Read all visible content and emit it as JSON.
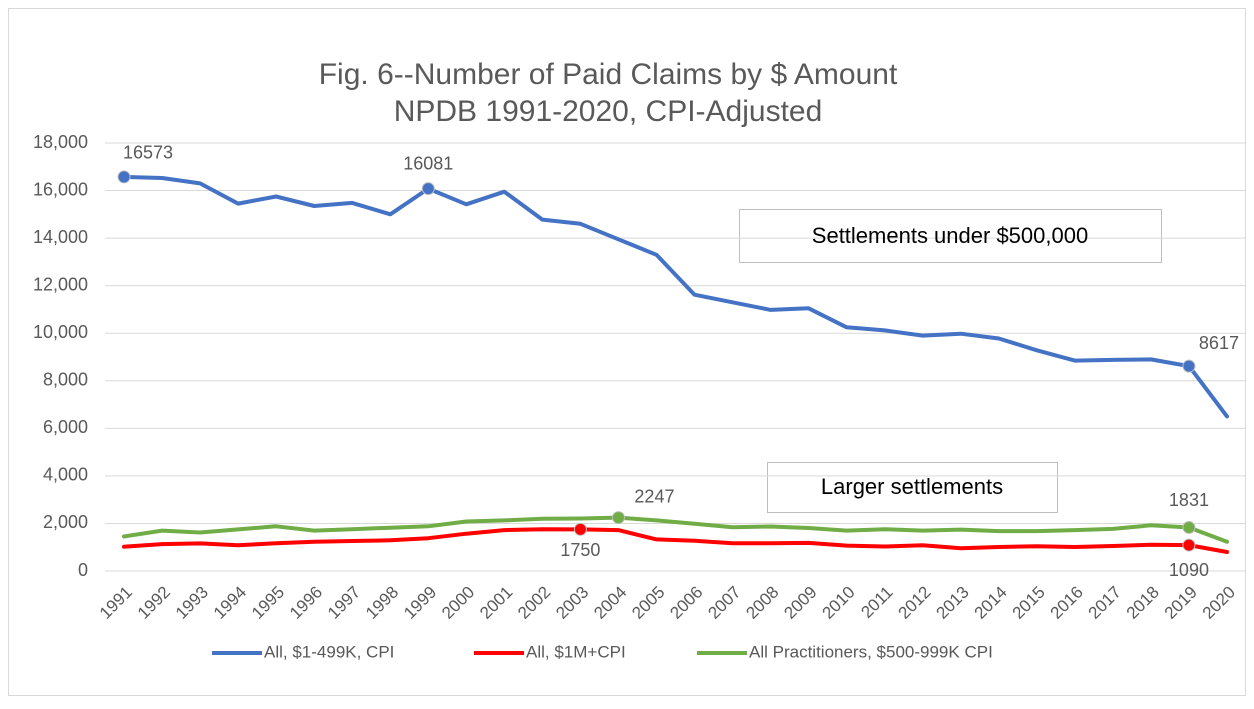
{
  "chart_data": {
    "type": "line",
    "title": "Fig. 6--Number of Paid Claims by $ Amount",
    "subtitle": "NPDB 1991-2020, CPI-Adjusted",
    "categories": [
      "1991",
      "1992",
      "1993",
      "1994",
      "1995",
      "1996",
      "1997",
      "1998",
      "1999",
      "2000",
      "2001",
      "2002",
      "2003",
      "2004",
      "2005",
      "2006",
      "2007",
      "2008",
      "2009",
      "2010",
      "2011",
      "2012",
      "2013",
      "2014",
      "2015",
      "2016",
      "2017",
      "2018",
      "2019",
      "2020"
    ],
    "series": [
      {
        "name": "All, $1-499K, CPI",
        "color": "#4472c4",
        "values": [
          16573,
          16530,
          16300,
          15450,
          15750,
          15350,
          15480,
          15000,
          16081,
          15420,
          15950,
          14780,
          14600,
          13950,
          13300,
          11620,
          11300,
          10980,
          11050,
          10250,
          10120,
          9900,
          9980,
          9780,
          9280,
          8850,
          8880,
          8900,
          8617,
          6500
        ],
        "value_labels": [
          "16573",
          null,
          null,
          null,
          null,
          null,
          null,
          null,
          "16081",
          null,
          null,
          null,
          null,
          null,
          null,
          null,
          null,
          null,
          null,
          null,
          null,
          null,
          null,
          null,
          null,
          null,
          null,
          null,
          "8617",
          null
        ]
      },
      {
        "name": "All, $1M+CPI",
        "color": "#ff0000",
        "values": [
          1020,
          1130,
          1160,
          1080,
          1170,
          1230,
          1260,
          1290,
          1380,
          1570,
          1720,
          1760,
          1750,
          1720,
          1330,
          1270,
          1170,
          1170,
          1180,
          1070,
          1030,
          1080,
          960,
          1010,
          1040,
          1010,
          1050,
          1100,
          1090,
          800
        ],
        "value_labels": [
          null,
          null,
          null,
          null,
          null,
          null,
          null,
          null,
          null,
          null,
          null,
          null,
          "1750",
          null,
          null,
          null,
          null,
          null,
          null,
          null,
          null,
          null,
          null,
          null,
          null,
          null,
          null,
          null,
          "1090",
          null
        ]
      },
      {
        "name": "All Practitioners, $500-999K CPI",
        "color": "#70ad47",
        "values": [
          1450,
          1700,
          1620,
          1750,
          1880,
          1700,
          1760,
          1820,
          1880,
          2080,
          2130,
          2200,
          2210,
          2247,
          2130,
          1990,
          1840,
          1870,
          1810,
          1700,
          1760,
          1700,
          1740,
          1680,
          1680,
          1720,
          1770,
          1920,
          1831,
          1230
        ],
        "value_labels": [
          null,
          null,
          null,
          null,
          null,
          null,
          null,
          null,
          null,
          null,
          null,
          null,
          null,
          "2247",
          null,
          null,
          null,
          null,
          null,
          null,
          null,
          null,
          null,
          null,
          null,
          null,
          null,
          null,
          "1831",
          null
        ]
      }
    ],
    "annotations": [
      "Settlements under $500,000",
      "Larger settlements"
    ],
    "ylim": [
      0,
      18000
    ],
    "yticks": [
      0,
      {
        "value": 2000,
        "label": "2,000"
      },
      {
        "value": 4000,
        "label": "4,000"
      },
      {
        "value": 6000,
        "label": "6,000"
      },
      {
        "value": 8000,
        "label": "8,000"
      },
      {
        "value": 10000,
        "label": "10,000"
      },
      {
        "value": 12000,
        "label": "12,000"
      },
      {
        "value": 14000,
        "label": "14,000"
      },
      {
        "value": 16000,
        "label": "16,000"
      },
      {
        "value": 18000,
        "label": "18,000"
      }
    ],
    "grid": true,
    "legend": "bottom"
  }
}
